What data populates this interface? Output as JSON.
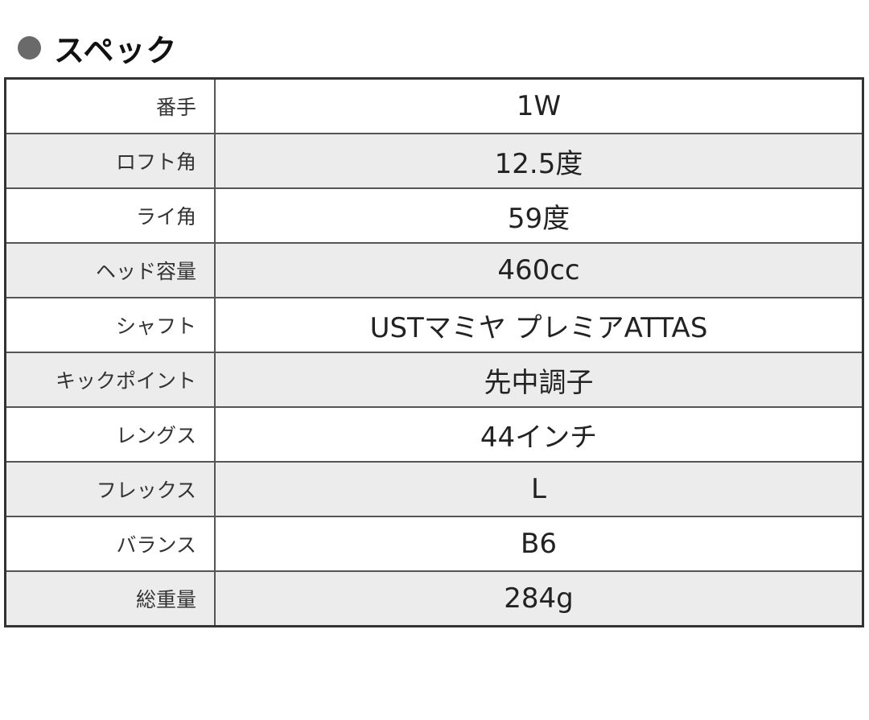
{
  "heading": "スペック",
  "specs": [
    {
      "label": "番手",
      "value": "1W"
    },
    {
      "label": "ロフト角",
      "value": "12.5度"
    },
    {
      "label": "ライ角",
      "value": "59度"
    },
    {
      "label": "ヘッド容量",
      "value": "460cc"
    },
    {
      "label": "シャフト",
      "value": "USTマミヤ プレミアATTAS"
    },
    {
      "label": "キックポイント",
      "value": "先中調子"
    },
    {
      "label": "レングス",
      "value": "44インチ"
    },
    {
      "label": "フレックス",
      "value": "L"
    },
    {
      "label": "バランス",
      "value": "B6"
    },
    {
      "label": "総重量",
      "value": "284g"
    }
  ]
}
